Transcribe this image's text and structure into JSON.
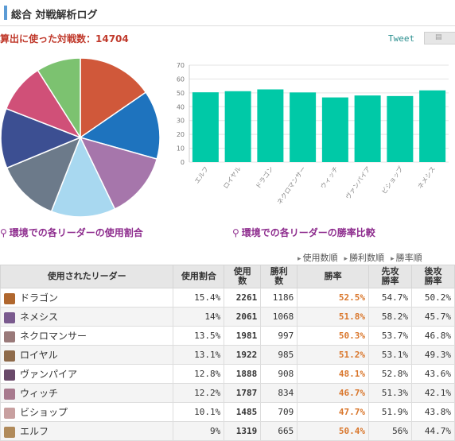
{
  "header": {
    "title": "総合 対戦解析ログ"
  },
  "summary": {
    "text": "算出に使った対戦数：14704"
  },
  "share": {
    "tweet": "Tweet",
    "icon": "document-icon"
  },
  "captions": {
    "pie": "環境での各リーダーの使用割合",
    "bar": "環境での各リーダーの勝率比較"
  },
  "sort_links": [
    "使用数順",
    "勝利数順",
    "勝率順"
  ],
  "table": {
    "headers": [
      "使用されたリーダー",
      "使用割合",
      "使用数",
      "勝利数",
      "勝率",
      "先攻勝率",
      "後攻勝率"
    ],
    "rows": [
      {
        "name": "ドラゴン",
        "share": "15.4%",
        "uses": "2261",
        "wins": "1186",
        "winrate": "52.5%",
        "first": "54.7%",
        "second": "50.2%",
        "color": "#b0672e"
      },
      {
        "name": "ネメシス",
        "share": "14%",
        "uses": "2061",
        "wins": "1068",
        "winrate": "51.8%",
        "first": "58.2%",
        "second": "45.7%",
        "color": "#7a5a8e"
      },
      {
        "name": "ネクロマンサー",
        "share": "13.5%",
        "uses": "1981",
        "wins": "997",
        "winrate": "50.3%",
        "first": "53.7%",
        "second": "46.8%",
        "color": "#9a7a7a"
      },
      {
        "name": "ロイヤル",
        "share": "13.1%",
        "uses": "1922",
        "wins": "985",
        "winrate": "51.2%",
        "first": "53.1%",
        "second": "49.3%",
        "color": "#8e6a4a"
      },
      {
        "name": "ヴァンパイア",
        "share": "12.8%",
        "uses": "1888",
        "wins": "908",
        "winrate": "48.1%",
        "first": "52.8%",
        "second": "43.6%",
        "color": "#6a4a6a"
      },
      {
        "name": "ウィッチ",
        "share": "12.2%",
        "uses": "1787",
        "wins": "834",
        "winrate": "46.7%",
        "first": "51.3%",
        "second": "42.1%",
        "color": "#a87a8e"
      },
      {
        "name": "ビショップ",
        "share": "10.1%",
        "uses": "1485",
        "wins": "709",
        "winrate": "47.7%",
        "first": "51.9%",
        "second": "43.8%",
        "color": "#c8a0a0"
      },
      {
        "name": "エルフ",
        "share": "9%",
        "uses": "1319",
        "wins": "665",
        "winrate": "50.4%",
        "first": "56%",
        "second": "44.7%",
        "color": "#b08a5a"
      }
    ]
  },
  "chart_data": [
    {
      "type": "pie",
      "categories": [
        "ドラゴン",
        "ネメシス",
        "ネクロマンサー",
        "ロイヤル",
        "ヴァンパイア",
        "ウィッチ",
        "ビショップ",
        "エルフ"
      ],
      "values": [
        15.4,
        14,
        13.5,
        13.1,
        12.8,
        12.2,
        10.1,
        9
      ],
      "colors": [
        "#d0583a",
        "#1e73be",
        "#a676ab",
        "#a8d8f0",
        "#6c7a8a",
        "#3c4f92",
        "#d05078",
        "#7cc270"
      ]
    },
    {
      "type": "bar",
      "categories": [
        "エルフ",
        "ロイヤル",
        "ドラゴン",
        "ネクロマンサー",
        "ウィッチ",
        "ヴァンパイア",
        "ビショップ",
        "ネメシス"
      ],
      "values": [
        50.4,
        51.2,
        52.5,
        50.3,
        46.7,
        48.1,
        47.7,
        51.8
      ],
      "ylim": [
        0,
        70
      ],
      "yticks": [
        0,
        10,
        20,
        30,
        40,
        50,
        60,
        70
      ],
      "color": "#00c9a7",
      "grid": true
    }
  ]
}
